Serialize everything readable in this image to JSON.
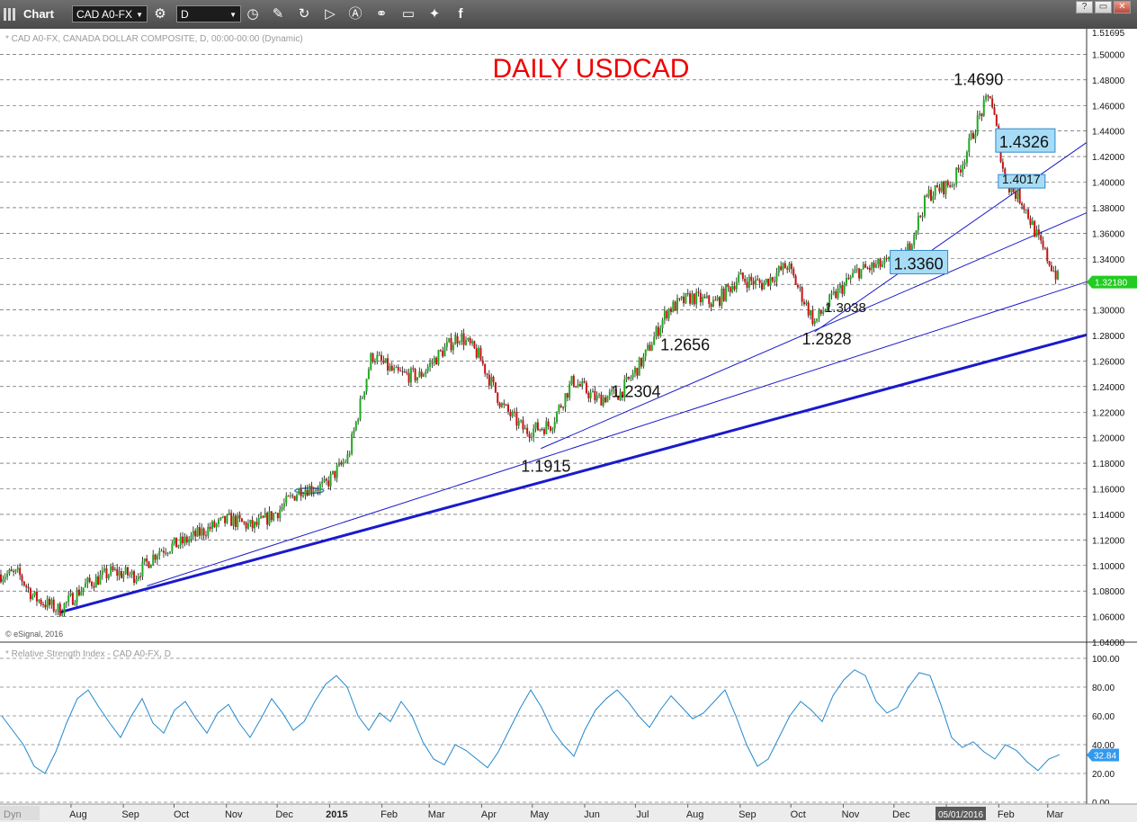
{
  "toolbar": {
    "title": "Chart",
    "symbol": "CAD A0-FX",
    "interval": "D"
  },
  "window_controls": [
    "?",
    "▭",
    "✕"
  ],
  "header_info": "* CAD A0-FX, CANADA DOLLAR COMPOSITE, D, 00:00-00:00 (Dynamic)",
  "rsi_header": "* Relative Strength Index - CAD A0-FX, D",
  "copyright": "© eSignal, 2016",
  "dyn_label": "Dyn",
  "date_badge": "05/01/2016",
  "price_top": "1.51695",
  "colors": {
    "title_red": "#ee0000",
    "trend_blue": "#1a1acc",
    "candle_green": "#22aa22",
    "candle_red": "#cc1111",
    "rsi_line": "#2288cc",
    "last_price_bg": "#22cc22",
    "rsi_value_bg": "#3399ee",
    "callout_fill": "#a6dcf5",
    "callout_border": "#3388cc"
  },
  "chart_data": [
    {
      "type": "candlestick",
      "title": "DAILY USDCAD",
      "ylim": [
        1.04,
        1.52
      ],
      "y_ticks": [
        "1.50000",
        "1.48000",
        "1.46000",
        "1.44000",
        "1.42000",
        "1.40000",
        "1.38000",
        "1.36000",
        "1.34000",
        "1.32000",
        "1.30000",
        "1.28000",
        "1.26000",
        "1.24000",
        "1.22000",
        "1.20000",
        "1.18000",
        "1.16000",
        "1.14000",
        "1.12000",
        "1.10000",
        "1.08000",
        "1.06000",
        "1.04000"
      ],
      "x_ticks": [
        "Aug",
        "Sep",
        "Oct",
        "Nov",
        "Dec",
        "2015",
        "Feb",
        "Mar",
        "Apr",
        "May",
        "Jun",
        "Jul",
        "Aug",
        "Sep",
        "Oct",
        "Nov",
        "Dec",
        "2016",
        "Feb",
        "Mar"
      ],
      "last_price": "1.32180",
      "series": [
        {
          "name": "USDCAD daily close (approx.)",
          "x": [
            "2014-07-01",
            "2014-07-10",
            "2014-07-25",
            "2014-08-10",
            "2014-08-25",
            "2014-09-08",
            "2014-09-22",
            "2014-10-06",
            "2014-10-20",
            "2014-11-03",
            "2014-11-17",
            "2014-12-01",
            "2014-12-15",
            "2014-12-29",
            "2015-01-12",
            "2015-01-26",
            "2015-02-09",
            "2015-02-23",
            "2015-03-09",
            "2015-03-19",
            "2015-03-30",
            "2015-04-13",
            "2015-04-27",
            "2015-05-12",
            "2015-05-25",
            "2015-06-08",
            "2015-06-22",
            "2015-07-06",
            "2015-07-20",
            "2015-08-03",
            "2015-08-17",
            "2015-08-31",
            "2015-09-14",
            "2015-09-29",
            "2015-10-15",
            "2015-10-26",
            "2015-11-09",
            "2015-11-23",
            "2015-12-07",
            "2015-12-21",
            "2016-01-05",
            "2016-01-12",
            "2016-01-20",
            "2016-01-27",
            "2016-02-05",
            "2016-02-15",
            "2016-02-26",
            "2016-03-08"
          ],
          "close": [
            1.093,
            1.075,
            1.065,
            1.085,
            1.095,
            1.092,
            1.112,
            1.118,
            1.128,
            1.136,
            1.13,
            1.142,
            1.16,
            1.162,
            1.185,
            1.265,
            1.25,
            1.248,
            1.268,
            1.28,
            1.265,
            1.225,
            1.205,
            1.21,
            1.245,
            1.23,
            1.235,
            1.262,
            1.3,
            1.31,
            1.305,
            1.325,
            1.32,
            1.335,
            1.29,
            1.31,
            1.33,
            1.335,
            1.34,
            1.39,
            1.4,
            1.42,
            1.45,
            1.469,
            1.4,
            1.385,
            1.35,
            1.322
          ]
        }
      ],
      "annotations": [
        {
          "text": "1.4690",
          "x": "2016-01-20",
          "y": 1.469
        },
        {
          "text": "1.4326",
          "x": "2016-01-27",
          "y": 1.4326,
          "boxed": true
        },
        {
          "text": "1.4017",
          "x": "2016-02-05",
          "y": 1.4017,
          "boxed": true
        },
        {
          "text": "1.3360",
          "x": "2015-12-03",
          "y": 1.336,
          "boxed": true
        },
        {
          "text": "1.3038",
          "x": "2015-11-05",
          "y": 1.3038
        },
        {
          "text": "1.2828",
          "x": "2015-10-15",
          "y": 1.2828
        },
        {
          "text": "1.2656",
          "x": "2015-07-20",
          "y": 1.2656
        },
        {
          "text": "1.2304",
          "x": "2015-06-22",
          "y": 1.2304
        },
        {
          "text": "1.1915",
          "x": "2015-05-05",
          "y": 1.1915
        }
      ]
    },
    {
      "type": "line",
      "title": "Relative Strength Index",
      "ylim": [
        0,
        100
      ],
      "y_ticks": [
        "100.00",
        "80.00",
        "60.00",
        "40.00",
        "20.00",
        "0.00"
      ],
      "last_value": "32.84",
      "series": [
        {
          "name": "RSI",
          "values": [
            60,
            50,
            40,
            25,
            20,
            35,
            55,
            72,
            78,
            66,
            55,
            45,
            60,
            72,
            55,
            48,
            64,
            70,
            58,
            48,
            62,
            68,
            55,
            45,
            58,
            72,
            62,
            50,
            56,
            70,
            82,
            88,
            80,
            60,
            50,
            62,
            56,
            70,
            60,
            42,
            30,
            26,
            40,
            36,
            30,
            24,
            35,
            50,
            65,
            78,
            66,
            50,
            40,
            32,
            50,
            64,
            72,
            78,
            70,
            60,
            52,
            64,
            74,
            66,
            58,
            62,
            70,
            78,
            60,
            40,
            25,
            30,
            45,
            60,
            70,
            64,
            56,
            74,
            85,
            92,
            88,
            70,
            62,
            66,
            80,
            90,
            88,
            68,
            45,
            38,
            42,
            35,
            30,
            40,
            36,
            28,
            22,
            30,
            33
          ]
        }
      ]
    }
  ]
}
